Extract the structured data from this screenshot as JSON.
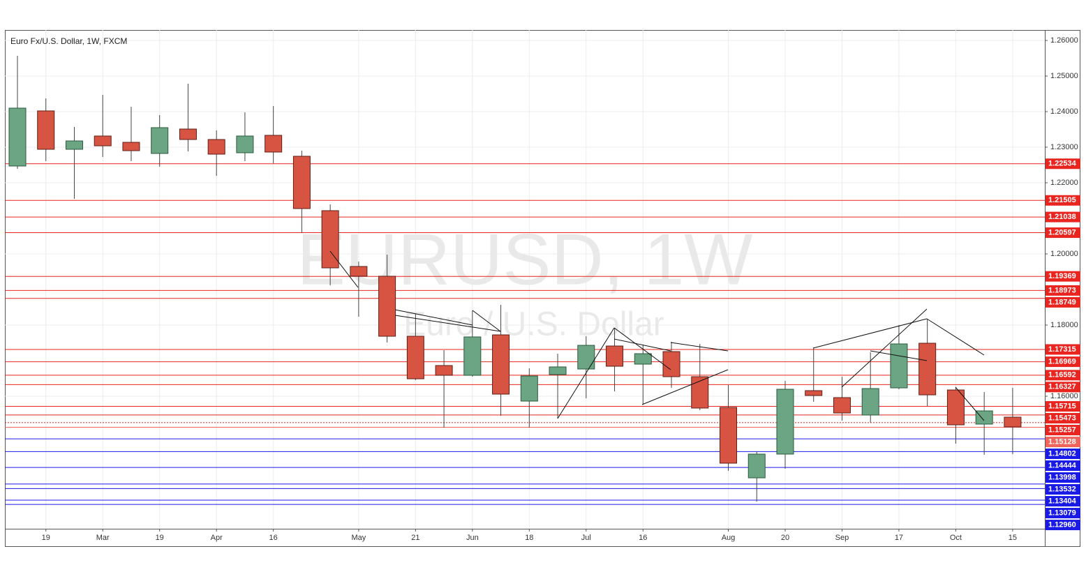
{
  "chart_data": {
    "type": "candlestick",
    "title": "Euro Fx/U.S. Dollar, 1W, FXCM",
    "watermark": "EURUSD, 1W",
    "watermark_subtitle": "Euro / U.S. Dollar",
    "categories": [
      null,
      "19",
      null,
      "Mar",
      null,
      "19",
      null,
      "Apr",
      null,
      "16",
      null,
      null,
      "May",
      null,
      "21",
      null,
      "Jun",
      null,
      "18",
      null,
      "Jul",
      null,
      "16",
      null,
      null,
      "Aug",
      null,
      "20",
      null,
      "Sep",
      null,
      "17",
      null,
      "Oct",
      null,
      "15"
    ],
    "open": [
      1.22471,
      1.2402,
      1.22941,
      1.23314,
      1.23137,
      1.22824,
      1.2351,
      1.23216,
      1.22843,
      1.23333,
      1.22745,
      1.21216,
      1.19647,
      1.19373,
      1.17686,
      1.16863,
      1.16588,
      1.17725,
      1.15863,
      1.16608,
      1.16765,
      1.17412,
      1.16902,
      1.17255,
      1.16549,
      1.15686,
      1.13706,
      1.14373,
      1.16157,
      1.15961,
      1.15471,
      1.16235,
      1.1749,
      1.16176,
      1.15216,
      1.15412
    ],
    "high": [
      1.25569,
      1.24373,
      1.23569,
      1.24471,
      1.24137,
      1.23902,
      1.24784,
      1.23471,
      1.2398,
      1.24157,
      1.22902,
      1.21392,
      1.19784,
      1.1998,
      1.18314,
      1.17294,
      1.18412,
      1.18569,
      1.16784,
      1.17196,
      1.17686,
      1.17922,
      1.17451,
      1.17529,
      1.17471,
      1.16314,
      1.14451,
      1.16431,
      1.17353,
      1.16549,
      1.17235,
      1.18,
      1.18176,
      1.16255,
      1.16118,
      1.16235
    ],
    "low": [
      1.22392,
      1.22608,
      1.21549,
      1.22725,
      1.22608,
      1.22451,
      1.22882,
      1.22196,
      1.22608,
      1.22549,
      1.20588,
      1.19118,
      1.18235,
      1.1751,
      1.16451,
      1.15118,
      1.16549,
      1.15451,
      1.15118,
      1.15373,
      1.15941,
      1.16137,
      1.15765,
      1.16235,
      1.15608,
      1.13902,
      1.13039,
      1.13961,
      1.15843,
      1.15314,
      1.15255,
      1.16196,
      1.15725,
      1.14667,
      1.14353,
      1.14373
    ],
    "close": [
      1.24098,
      1.22941,
      1.23176,
      1.23039,
      1.22902,
      1.23549,
      1.23216,
      1.22804,
      1.23314,
      1.22863,
      1.21275,
      1.19608,
      1.19373,
      1.17686,
      1.1649,
      1.16588,
      1.17667,
      1.16059,
      1.16569,
      1.16824,
      1.17431,
      1.16843,
      1.17196,
      1.16549,
      1.15667,
      1.14118,
      1.14373,
      1.16196,
      1.1602,
      1.15529,
      1.16216,
      1.17471,
      1.16039,
      1.15196,
      1.15588,
      1.15137
    ],
    "up_color": "#6ba583",
    "down_color": "#d75442",
    "ylim": [
      1.12275,
      1.26294
    ],
    "yticks": [
      {
        "value": 1.26,
        "label": "1.26000"
      },
      {
        "value": 1.25,
        "label": "1.25000"
      },
      {
        "value": 1.24,
        "label": "1.24000"
      },
      {
        "value": 1.23,
        "label": "1.23000"
      },
      {
        "value": 1.22,
        "label": "1.22000"
      },
      {
        "value": 1.2,
        "label": "1.20000"
      },
      {
        "value": 1.18,
        "label": "1.18000"
      },
      {
        "value": 1.16,
        "label": "1.16000"
      }
    ],
    "grid": true,
    "levels": [
      {
        "value": 1.22534,
        "label": "1.22534",
        "color": "#e8251f"
      },
      {
        "value": 1.21505,
        "label": "1.21505",
        "color": "#e8251f"
      },
      {
        "value": 1.21038,
        "label": "1.21038",
        "color": "#e8251f"
      },
      {
        "value": 1.20597,
        "label": "1.20597",
        "color": "#e8251f"
      },
      {
        "value": 1.19369,
        "label": "1.19369",
        "color": "#e8251f"
      },
      {
        "value": 1.18973,
        "label": "1.18973",
        "color": "#e8251f"
      },
      {
        "value": 1.18749,
        "label": "1.18749",
        "color": "#e8251f"
      },
      {
        "value": 1.17315,
        "label": "1.17315",
        "color": "#e8251f"
      },
      {
        "value": 1.16969,
        "label": "1.16969",
        "color": "#e8251f"
      },
      {
        "value": 1.16592,
        "label": "1.16592",
        "color": "#e8251f"
      },
      {
        "value": 1.16327,
        "label": "1.16327",
        "color": "#e8251f"
      },
      {
        "value": 1.15715,
        "label": "1.15715",
        "color": "#e8251f"
      },
      {
        "value": 1.15473,
        "label": "1.15473",
        "color": "#e8251f"
      },
      {
        "value": 1.15257,
        "label": "1.15257",
        "color": "#e8251f",
        "line_style": "dotted"
      },
      {
        "value": 1.15128,
        "label": "1.15128",
        "color": "#f0645c"
      },
      {
        "value": 1.14802,
        "label": "1.14802",
        "color": "#1a1ae6"
      },
      {
        "value": 1.14444,
        "label": "1.14444",
        "color": "#1a1ae6"
      },
      {
        "value": 1.13998,
        "label": "1.13998",
        "color": "#1a1ae6"
      },
      {
        "value": 1.13532,
        "label": "1.13532",
        "color": "#1a1ae6"
      },
      {
        "value": 1.13404,
        "label": "1.13404",
        "color": "#1a1ae6"
      },
      {
        "value": 1.13079,
        "label": "1.13079",
        "color": "#1a1ae6"
      },
      {
        "value": 1.1296,
        "label": "1.12960",
        "color": "#1a1ae6"
      }
    ]
  }
}
